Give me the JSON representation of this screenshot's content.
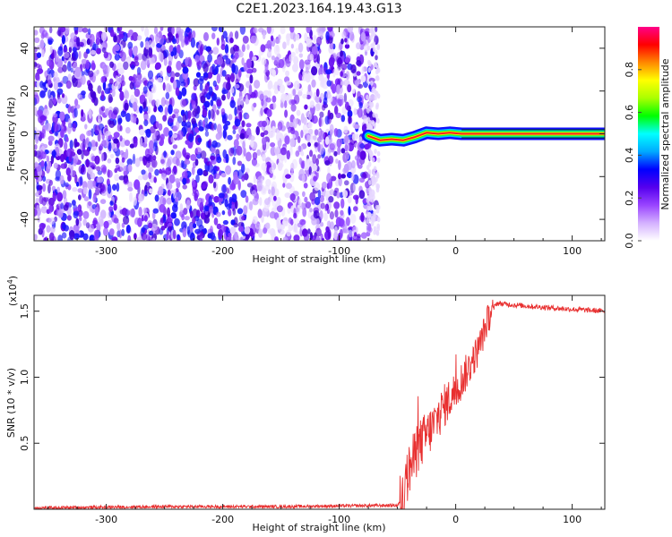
{
  "figure_title": "C2E1.2023.164.19.43.G13",
  "chart_data": [
    {
      "type": "heatmap",
      "xlabel": "Height of straight line (km)",
      "ylabel": "Frequency (Hz)",
      "xlim": [
        -362,
        128
      ],
      "ylim": [
        -50,
        50
      ],
      "xticks": [
        -300,
        -200,
        -100,
        0,
        100
      ],
      "yticks": [
        -40,
        -20,
        0,
        20,
        40
      ],
      "xtick_labels": [
        "-300",
        "-200",
        "-100",
        "0",
        "100"
      ],
      "ytick_labels": [
        "-40",
        "-20",
        "0",
        "20",
        "40"
      ],
      "noise_region_x": [
        -362,
        -68
      ],
      "signal_track": [
        {
          "x": -75,
          "y": -1
        },
        {
          "x": -65,
          "y": -3
        },
        {
          "x": -55,
          "y": -2.5
        },
        {
          "x": -45,
          "y": -3
        },
        {
          "x": -35,
          "y": -1.5
        },
        {
          "x": -25,
          "y": 0.5
        },
        {
          "x": -15,
          "y": 0
        },
        {
          "x": -5,
          "y": 0.5
        },
        {
          "x": 5,
          "y": 0
        },
        {
          "x": 128,
          "y": 0
        }
      ],
      "colorbar": {
        "label": "Normalized spectral amplitude",
        "range": [
          0,
          1
        ],
        "ticks": [
          "0.0",
          "0.2",
          "0.4",
          "0.6",
          "0.8"
        ],
        "colors": [
          "#ffffff",
          "#d4b0ff",
          "#9944ff",
          "#5500ee",
          "#0000ff",
          "#00aaff",
          "#00ffff",
          "#00ff00",
          "#aaff00",
          "#ffff00",
          "#ff8800",
          "#ff0000",
          "#ff0088"
        ]
      }
    },
    {
      "type": "line",
      "xlabel": "Height of straight line (km)",
      "ylabel": "SNR (10 * v/v)",
      "y_scale_label": "(x10",
      "y_scale_exp": "4",
      "y_scale_close": ")",
      "xlim": [
        -362,
        128
      ],
      "ylim": [
        0,
        1.62
      ],
      "xticks": [
        -300,
        -200,
        -100,
        0,
        100
      ],
      "yticks": [
        0.5,
        1.0,
        1.5
      ],
      "xtick_labels": [
        "-300",
        "-200",
        "-100",
        "0",
        "100"
      ],
      "ytick_labels": [
        "0.5",
        "1.0",
        "1.5"
      ],
      "color": "#e83030",
      "series_profile": [
        {
          "x": -362,
          "y": 0.01
        },
        {
          "x": -250,
          "y": 0.02
        },
        {
          "x": -150,
          "y": 0.02
        },
        {
          "x": -50,
          "y": 0.03
        },
        {
          "x": -45,
          "y": 0.08
        },
        {
          "x": -40,
          "y": 0.3
        },
        {
          "x": -30,
          "y": 0.5
        },
        {
          "x": -20,
          "y": 0.62
        },
        {
          "x": -10,
          "y": 0.78
        },
        {
          "x": 0,
          "y": 0.9
        },
        {
          "x": 10,
          "y": 1.05
        },
        {
          "x": 20,
          "y": 1.22
        },
        {
          "x": 28,
          "y": 1.45
        },
        {
          "x": 35,
          "y": 1.56
        },
        {
          "x": 60,
          "y": 1.54
        },
        {
          "x": 90,
          "y": 1.52
        },
        {
          "x": 128,
          "y": 1.5
        }
      ]
    }
  ]
}
